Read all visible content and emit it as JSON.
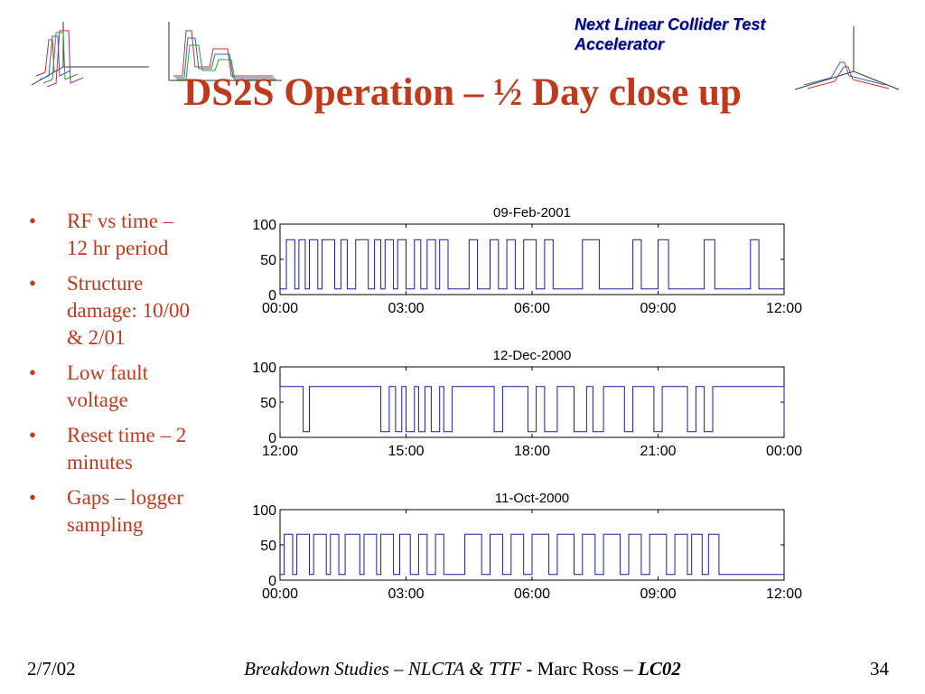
{
  "header": {
    "org_line1": "Next Linear Collider Test",
    "org_line2": "Accelerator"
  },
  "title": "DS2S Operation – ½ Day close up",
  "bullets": [
    "RF vs time –\n12 hr period",
    "Structure\ndamage: 10/00\n& 2/01",
    "Low fault\nvoltage",
    "Reset time – 2\nminutes",
    "Gaps – logger\nsampling"
  ],
  "footer": {
    "date": "2/7/02",
    "center_italic": "Breakdown Studies – NLCTA & TTF",
    "center_plain": " - Marc Ross – ",
    "center_bold_italic": "LC02",
    "page": "34"
  },
  "colors": {
    "title": "#c0391b",
    "bullets": "#c0391b",
    "org": "#000080",
    "series": "#1a1aa8"
  },
  "decorations": [
    "waterfall-plot-icon",
    "waterfall-plot-icon",
    "waterfall-plot-icon"
  ],
  "chart_data": [
    {
      "type": "line",
      "title": "09-Feb-2001",
      "xticks": [
        "00:00",
        "03:00",
        "06:00",
        "09:00",
        "12:00"
      ],
      "yticks": [
        "0",
        "50",
        "100"
      ],
      "ylim": [
        0,
        100
      ],
      "xlim_hours": [
        0,
        12
      ],
      "baseline": 8,
      "high_level": 78,
      "series": [
        {
          "on_intervals_hours": [
            [
              0.15,
              0.35
            ],
            [
              0.45,
              0.6
            ],
            [
              0.7,
              0.9
            ],
            [
              1.0,
              1.3
            ],
            [
              1.45,
              1.6
            ],
            [
              1.8,
              2.1
            ],
            [
              2.25,
              2.4
            ],
            [
              2.5,
              2.7
            ],
            [
              2.8,
              3.0
            ],
            [
              3.2,
              3.35
            ],
            [
              3.5,
              3.7
            ],
            [
              3.8,
              4.0
            ],
            [
              4.5,
              4.7
            ],
            [
              5.0,
              5.2
            ],
            [
              5.4,
              5.6
            ],
            [
              5.8,
              6.1
            ],
            [
              6.3,
              6.5
            ],
            [
              7.2,
              7.6
            ],
            [
              8.4,
              8.6
            ],
            [
              9.0,
              9.25
            ],
            [
              10.1,
              10.35
            ],
            [
              11.2,
              11.4
            ]
          ]
        }
      ]
    },
    {
      "type": "line",
      "title": "12-Dec-2000",
      "xticks": [
        "12:00",
        "15:00",
        "18:00",
        "21:00",
        "00:00"
      ],
      "yticks": [
        "0",
        "50",
        "100"
      ],
      "ylim": [
        0,
        100
      ],
      "xlim_hours": [
        0,
        12
      ],
      "baseline": 8,
      "high_level": 72,
      "series": [
        {
          "off_intervals_hours": [
            [
              0.55,
              0.7
            ],
            [
              2.4,
              2.6
            ],
            [
              2.75,
              2.9
            ],
            [
              3.0,
              3.2
            ],
            [
              3.3,
              3.45
            ],
            [
              3.6,
              3.8
            ],
            [
              3.9,
              4.1
            ],
            [
              5.1,
              5.3
            ],
            [
              5.9,
              6.1
            ],
            [
              6.3,
              6.6
            ],
            [
              7.0,
              7.3
            ],
            [
              7.45,
              7.7
            ],
            [
              8.2,
              8.4
            ],
            [
              8.9,
              9.1
            ],
            [
              9.7,
              9.9
            ],
            [
              10.1,
              10.3
            ]
          ]
        }
      ]
    },
    {
      "type": "line",
      "title": "11-Oct-2000",
      "xticks": [
        "00:00",
        "03:00",
        "06:00",
        "09:00",
        "12:00"
      ],
      "yticks": [
        "0",
        "50",
        "100"
      ],
      "ylim": [
        0,
        100
      ],
      "xlim_hours": [
        0,
        12
      ],
      "baseline": 8,
      "high_level": 65,
      "series": [
        {
          "on_intervals_hours": [
            [
              0.1,
              0.3
            ],
            [
              0.4,
              0.7
            ],
            [
              0.8,
              1.1
            ],
            [
              1.2,
              1.4
            ],
            [
              1.55,
              1.9
            ],
            [
              2.0,
              2.3
            ],
            [
              2.4,
              2.7
            ],
            [
              2.85,
              3.1
            ],
            [
              3.3,
              3.5
            ],
            [
              3.7,
              3.9
            ],
            [
              4.4,
              4.8
            ],
            [
              5.0,
              5.3
            ],
            [
              5.5,
              5.8
            ],
            [
              6.0,
              6.4
            ],
            [
              6.6,
              7.0
            ],
            [
              7.2,
              7.5
            ],
            [
              7.7,
              8.1
            ],
            [
              8.3,
              8.6
            ],
            [
              8.8,
              9.2
            ],
            [
              9.4,
              9.7
            ],
            [
              9.8,
              10.05
            ],
            [
              10.2,
              10.45
            ]
          ]
        }
      ]
    }
  ]
}
